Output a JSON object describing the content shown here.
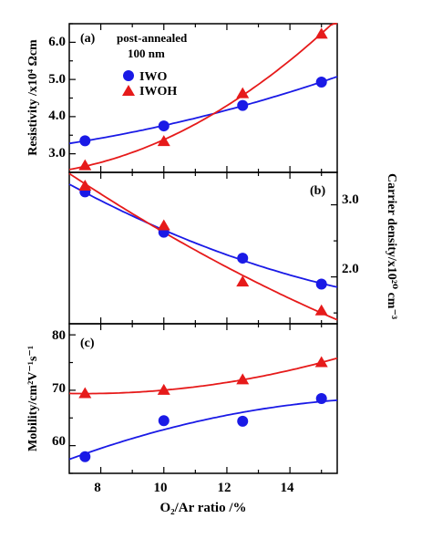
{
  "chart_data": [
    {
      "type": "scatter",
      "panel_label": "(a)",
      "annotation": [
        "post-annealed",
        "100 nm"
      ],
      "ylabel": "Resistivity /x10⁴ Ωcm",
      "ylim": [
        2.5,
        6.5
      ],
      "y_ticks": [
        3.0,
        4.0,
        5.0,
        6.0
      ],
      "y_tick_labels": [
        "3.0",
        "4.0",
        "5.0",
        "6.0"
      ],
      "xlim": [
        7,
        15.5
      ],
      "legend": {
        "position": "top-left",
        "entries": [
          "IWO",
          "IWOH"
        ]
      },
      "series": [
        {
          "name": "IWO",
          "marker": "circle",
          "color": "#1a1ae6",
          "x": [
            7.5,
            10,
            12.5,
            15
          ],
          "y": [
            3.35,
            3.75,
            4.3,
            4.93
          ]
        },
        {
          "name": "IWOH",
          "marker": "triangle",
          "color": "#e61a1a",
          "x": [
            7.5,
            10,
            12.5,
            15
          ],
          "y": [
            2.68,
            3.33,
            4.62,
            6.22
          ]
        }
      ]
    },
    {
      "type": "scatter",
      "panel_label": "(b)",
      "ylabel": "Carrier density/x10²⁰ cm⁻³",
      "y_axis_side": "right",
      "ylim": [
        1.35,
        3.45
      ],
      "y_ticks": [
        2.0,
        3.0
      ],
      "y_tick_labels": [
        "2.0",
        "3.0"
      ],
      "xlim": [
        7,
        15.5
      ],
      "series": [
        {
          "name": "IWO",
          "marker": "circle",
          "color": "#1a1ae6",
          "x": [
            7.5,
            10,
            12.5,
            15
          ],
          "y": [
            3.18,
            2.62,
            2.26,
            1.9
          ]
        },
        {
          "name": "IWOH",
          "marker": "triangle",
          "color": "#e61a1a",
          "x": [
            7.5,
            10,
            12.5,
            15
          ],
          "y": [
            3.26,
            2.71,
            1.93,
            1.53
          ]
        }
      ]
    },
    {
      "type": "scatter",
      "panel_label": "(c)",
      "ylabel": "Mobility/cm²V⁻¹s⁻¹",
      "ylim": [
        55,
        82
      ],
      "y_ticks": [
        60,
        70,
        80
      ],
      "y_tick_labels": [
        "60",
        "70",
        "80"
      ],
      "xlim": [
        7,
        15.5
      ],
      "x_ticks": [
        8,
        10,
        12,
        14
      ],
      "x_tick_labels": [
        "8",
        "10",
        "12",
        "14"
      ],
      "xlabel": "O₂/Ar ratio /%",
      "series": [
        {
          "name": "IWO",
          "marker": "circle",
          "color": "#1a1ae6",
          "x": [
            7.5,
            10,
            12.5,
            15
          ],
          "y": [
            58.0,
            64.5,
            64.4,
            68.5
          ]
        },
        {
          "name": "IWOH",
          "marker": "triangle",
          "color": "#e61a1a",
          "x": [
            7.5,
            10,
            12.5,
            15
          ],
          "y": [
            69.4,
            70.0,
            71.9,
            75.0
          ]
        }
      ]
    }
  ],
  "colors": {
    "IWO": "#1a1ae6",
    "IWOH": "#e61a1a",
    "axis": "#000000"
  }
}
